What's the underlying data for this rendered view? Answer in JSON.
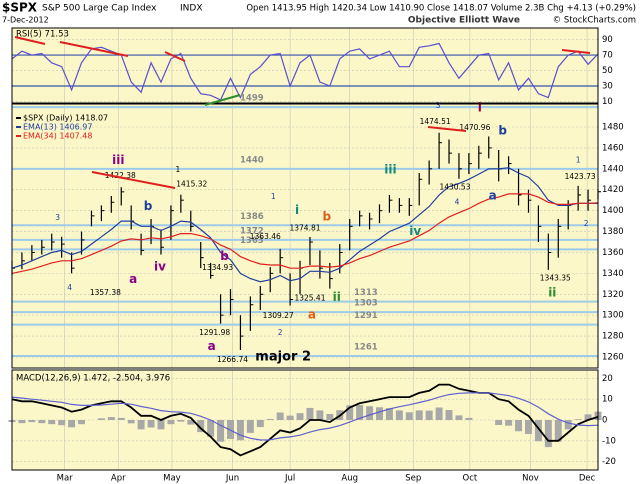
{
  "header": {
    "symbol": "$SPX",
    "name": "S&P 500 Large Cap Index",
    "exchange": "INDX",
    "date": "7-Dec-2012",
    "quote": "Open 1413.95 High 1420.34 Low 1410.90 Close 1418.07 Volume 2.3B Chg +4.13 (+0.29%)",
    "credit": "Objective Elliott Wave",
    "source": "© StockCharts.com"
  },
  "chart_data": [
    {
      "type": "line",
      "background": "#fbf7c8",
      "xlim": [
        0,
        59
      ],
      "ylim": [
        8,
        105
      ],
      "yticks": [
        10,
        30,
        50,
        70,
        90
      ],
      "reference_lines": [
        30,
        70
      ],
      "reference_color": "#3355aa",
      "series": [
        {
          "name": "RSI(5) 71.53",
          "color": "#5a4fcf",
          "values": [
            65,
            75,
            70,
            72,
            60,
            55,
            25,
            60,
            78,
            80,
            75,
            70,
            35,
            22,
            60,
            35,
            65,
            72,
            40,
            20,
            18,
            12,
            40,
            15,
            45,
            55,
            70,
            72,
            30,
            60,
            70,
            35,
            30,
            65,
            75,
            78,
            65,
            70,
            75,
            55,
            55,
            80,
            82,
            85,
            60,
            40,
            55,
            70,
            72,
            38,
            60,
            25,
            40,
            20,
            15,
            55,
            70,
            75,
            58,
            71.53
          ]
        }
      ]
    },
    {
      "type": "ohlc",
      "background": "#fbf7c8",
      "xlim": [
        0,
        59
      ],
      "ylim": [
        1249.5,
        1502
      ],
      "yticks": [
        1260,
        1280,
        1300,
        1320,
        1340,
        1360,
        1380,
        1400,
        1420,
        1440,
        1460,
        1480
      ],
      "levels": [
        1499,
        1440,
        1386,
        1372,
        1363,
        1313,
        1303,
        1291,
        1261
      ],
      "level_color": "#9fcbea",
      "series": [
        {
          "name": "$SPX (Daily) 1418.07",
          "color": "#000000",
          "high": [
            1352,
            1360,
            1367,
            1372,
            1378,
            1375,
            1360,
            1380,
            1400,
            1405,
            1414,
            1422.38,
            1405,
            1378,
            1392,
            1382,
            1405,
            1415.32,
            1400,
            1370,
            1350,
            1320,
            1325,
            1300,
            1318,
            1328,
            1346,
            1363.46,
            1340,
            1352,
            1374.81,
            1362,
            1350,
            1368,
            1392,
            1400,
            1398,
            1406,
            1415,
            1412,
            1412,
            1436,
            1448,
            1474.51,
            1468,
            1455,
            1455,
            1462,
            1470.96,
            1458,
            1452,
            1440,
            1420,
            1405,
            1378,
            1392,
            1410,
            1423.73,
            1420,
            1420.34
          ],
          "low": [
            1338,
            1344,
            1352,
            1358,
            1362,
            1355,
            1340,
            1358,
            1385,
            1390,
            1398,
            1405,
            1382,
            1357.38,
            1368,
            1358,
            1372,
            1398,
            1380,
            1345,
            1334.93,
            1291.98,
            1300,
            1266.74,
            1285,
            1305,
            1322,
            1340,
            1309.27,
            1320,
            1348,
            1335,
            1325.41,
            1340,
            1362,
            1385,
            1382,
            1388,
            1398,
            1398,
            1395,
            1405,
            1425,
            1440,
            1445,
            1430.53,
            1435,
            1440,
            1450,
            1428,
            1435,
            1405,
            1398,
            1370,
            1343.35,
            1355,
            1382,
            1400,
            1400,
            1410.9
          ],
          "close": [
            1345,
            1352,
            1360,
            1365,
            1370,
            1368,
            1345,
            1372,
            1395,
            1400,
            1408,
            1418,
            1390,
            1362,
            1385,
            1365,
            1400,
            1410,
            1385,
            1355,
            1338,
            1300,
            1315,
            1280,
            1310,
            1320,
            1340,
            1355,
            1315,
            1345,
            1370,
            1345,
            1335,
            1360,
            1385,
            1395,
            1392,
            1400,
            1410,
            1405,
            1405,
            1430,
            1440,
            1465,
            1455,
            1440,
            1445,
            1455,
            1460,
            1440,
            1445,
            1415,
            1410,
            1385,
            1360,
            1385,
            1405,
            1415,
            1410,
            1418.07
          ]
        },
        {
          "name": "EMA(13) 1406.97",
          "color": "#1f3f9f",
          "values": [
            1345,
            1348,
            1352,
            1356,
            1360,
            1362,
            1358,
            1361,
            1368,
            1375,
            1382,
            1390,
            1390,
            1385,
            1385,
            1381,
            1385,
            1390,
            1389,
            1382,
            1374,
            1360,
            1353,
            1340,
            1335,
            1332,
            1334,
            1338,
            1333,
            1335,
            1342,
            1342,
            1341,
            1345,
            1353,
            1361,
            1367,
            1373,
            1380,
            1384,
            1388,
            1396,
            1404,
            1415,
            1423,
            1426,
            1430,
            1435,
            1440,
            1440,
            1441,
            1436,
            1432,
            1423,
            1410,
            1405,
            1405,
            1407,
            1407,
            1406.97
          ]
        },
        {
          "name": "EMA(34) 1407.48",
          "color": "#e02020",
          "values": [
            1340,
            1342,
            1344,
            1347,
            1350,
            1352,
            1352,
            1354,
            1358,
            1362,
            1366,
            1371,
            1373,
            1372,
            1374,
            1373,
            1375,
            1378,
            1378,
            1376,
            1373,
            1367,
            1363,
            1356,
            1352,
            1349,
            1348,
            1348,
            1345,
            1345,
            1347,
            1347,
            1346,
            1347,
            1350,
            1354,
            1357,
            1361,
            1365,
            1368,
            1371,
            1376,
            1381,
            1388,
            1394,
            1398,
            1402,
            1407,
            1411,
            1413,
            1416,
            1416,
            1416,
            1413,
            1408,
            1406,
            1406,
            1407,
            1407,
            1407.48
          ]
        }
      ],
      "annotations": [
        {
          "text": "iii",
          "x": 10.7,
          "y": 1448,
          "color": "#8b008b"
        },
        {
          "text": "1",
          "x": 16.7,
          "y": 1439,
          "color": "#000000"
        },
        {
          "text": "1422.38",
          "x": 10.9,
          "y": 1433,
          "color": "#000000"
        },
        {
          "text": "1415.32",
          "x": 18.1,
          "y": 1425,
          "color": "#000000"
        },
        {
          "text": "3",
          "x": 4.6,
          "y": 1393,
          "color": "#1f3f9f"
        },
        {
          "text": "b",
          "x": 13.7,
          "y": 1404,
          "color": "#1f3f9f"
        },
        {
          "text": "4",
          "x": 5.8,
          "y": 1326,
          "color": "#1f3f9f"
        },
        {
          "text": "1357.38",
          "x": 9.4,
          "y": 1321,
          "color": "#000000"
        },
        {
          "text": "a",
          "x": 12.2,
          "y": 1334,
          "color": "#8b008b"
        },
        {
          "text": "iv",
          "x": 14.9,
          "y": 1346,
          "color": "#8b008b"
        },
        {
          "text": "b",
          "x": 21.4,
          "y": 1356,
          "color": "#8b008b"
        },
        {
          "text": "1334.93",
          "x": 20.7,
          "y": 1345,
          "color": "#000000"
        },
        {
          "text": "1291.98",
          "x": 20.4,
          "y": 1283,
          "color": "#000000"
        },
        {
          "text": "a",
          "x": 20.1,
          "y": 1270,
          "color": "#8b008b"
        },
        {
          "text": "1266.74",
          "x": 22.2,
          "y": 1257,
          "color": "#000000"
        },
        {
          "text": "major 2",
          "x": 27.3,
          "y": 1260,
          "color": "#000000"
        },
        {
          "text": "2",
          "x": 27.0,
          "y": 1283,
          "color": "#1f3f9f"
        },
        {
          "text": "1309.27",
          "x": 26.8,
          "y": 1299,
          "color": "#000000"
        },
        {
          "text": "1",
          "x": 26.3,
          "y": 1413,
          "color": "#1f3f9f"
        },
        {
          "text": "1363.46",
          "x": 25.5,
          "y": 1375,
          "color": "#000000"
        },
        {
          "text": "i",
          "x": 28.7,
          "y": 1400,
          "color": "#138a7a"
        },
        {
          "text": "1374.81",
          "x": 29.5,
          "y": 1383,
          "color": "#000000"
        },
        {
          "text": "b",
          "x": 31.7,
          "y": 1394,
          "color": "#e0601a"
        },
        {
          "text": "1325.41",
          "x": 30.0,
          "y": 1316,
          "color": "#000000"
        },
        {
          "text": "a",
          "x": 30.2,
          "y": 1300,
          "color": "#e0601a"
        },
        {
          "text": "ii",
          "x": 32.7,
          "y": 1317,
          "color": "#2e8b2e"
        },
        {
          "text": "iii",
          "x": 38.1,
          "y": 1439,
          "color": "#138a7a"
        },
        {
          "text": "iv",
          "x": 40.6,
          "y": 1380,
          "color": "#138a7a"
        },
        {
          "text": "3",
          "x": 42.9,
          "y": 1500,
          "color": "#1f3f9f"
        },
        {
          "text": "i",
          "x": 47.1,
          "y": 1498,
          "color": "#99003d"
        },
        {
          "text": "1474.51",
          "x": 42.6,
          "y": 1485,
          "color": "#000000"
        },
        {
          "text": "1470.96",
          "x": 46.6,
          "y": 1479,
          "color": "#000000"
        },
        {
          "text": "b",
          "x": 49.4,
          "y": 1476,
          "color": "#1f3f9f"
        },
        {
          "text": "1430.53",
          "x": 44.6,
          "y": 1422,
          "color": "#000000"
        },
        {
          "text": "4",
          "x": 44.8,
          "y": 1408,
          "color": "#1f3f9f"
        },
        {
          "text": "a",
          "x": 48.4,
          "y": 1414,
          "color": "#1f3f9f"
        },
        {
          "text": "1343.35",
          "x": 54.7,
          "y": 1335,
          "color": "#000000"
        },
        {
          "text": "ii",
          "x": 54.4,
          "y": 1321,
          "color": "#2e8b2e"
        },
        {
          "text": "1",
          "x": 57.0,
          "y": 1448,
          "color": "#1f3f9f"
        },
        {
          "text": "1423.73",
          "x": 57.2,
          "y": 1432,
          "color": "#000000"
        },
        {
          "text": "2",
          "x": 57.8,
          "y": 1387,
          "color": "#1f3f9f"
        }
      ]
    },
    {
      "type": "macd",
      "background": "#fbf7c8",
      "xlim": [
        0,
        59
      ],
      "ylim": [
        -24,
        24
      ],
      "yticks": [
        -20,
        -10,
        0,
        10,
        20
      ],
      "label": "MACD(12,26,9) 1.472, -2.504, 3.976",
      "xticks": [
        {
          "value": 5.3,
          "label": "Mar"
        },
        {
          "value": 10.7,
          "label": "Apr"
        },
        {
          "value": 16.1,
          "label": "May"
        },
        {
          "value": 22.2,
          "label": "Jun"
        },
        {
          "value": 28.0,
          "label": "Jul"
        },
        {
          "value": 34.0,
          "label": "Aug"
        },
        {
          "value": 40.4,
          "label": "Sep"
        },
        {
          "value": 46.1,
          "label": "Oct"
        },
        {
          "value": 52.2,
          "label": "Nov"
        },
        {
          "value": 57.9,
          "label": "Dec"
        }
      ],
      "series": [
        {
          "style": "histogram",
          "color": "#a8a8a8",
          "values": [
            -1,
            -1.5,
            -1,
            -1.5,
            -2,
            -2.5,
            -3.5,
            -2,
            0,
            0.8,
            1.4,
            1,
            -1.6,
            -4.5,
            -3.6,
            -4.5,
            -2,
            -0.8,
            -2.2,
            -5.8,
            -8,
            -10.4,
            -9.1,
            -9.7,
            -6.2,
            -3.4,
            0.5,
            3.6,
            2.1,
            3.3,
            5.8,
            4.6,
            2.9,
            4.7,
            7,
            7.2,
            6.6,
            6.1,
            5.7,
            4.6,
            3.7,
            4.6,
            4.5,
            6,
            4.8,
            2.2,
            1,
            0,
            0,
            -2.4,
            -2.7,
            -5.4,
            -6.7,
            -10.2,
            -13,
            -10.4,
            -4.5,
            0.4,
            2.7,
            3.976
          ]
        },
        {
          "style": "line",
          "color": "#000000",
          "values": [
            10,
            9,
            9,
            8,
            7,
            6,
            4,
            5,
            7,
            8,
            9,
            9,
            6,
            2,
            2,
            0,
            2,
            3,
            1,
            -4,
            -8,
            -13,
            -14,
            -17,
            -15,
            -13,
            -9,
            -5,
            -6,
            -4,
            0,
            0,
            -1,
            2,
            6,
            8,
            9,
            10,
            11,
            11,
            11,
            13,
            14,
            17,
            17,
            15,
            14,
            13,
            13,
            10,
            9,
            5,
            2,
            -4,
            -10,
            -10,
            -6,
            -2,
            0,
            1.472
          ]
        },
        {
          "style": "line",
          "color": "#6060d0",
          "values": [
            11,
            10.5,
            10,
            9.5,
            9,
            8.5,
            7.5,
            7,
            7,
            7.2,
            7.6,
            8,
            7.6,
            6.5,
            5.6,
            4.5,
            4,
            3.8,
            3.2,
            1.8,
            0,
            -2.6,
            -4.9,
            -7.3,
            -8.8,
            -9.6,
            -9.5,
            -8.6,
            -8.1,
            -7.3,
            -5.8,
            -4.6,
            -3.9,
            -2.7,
            -1,
            0.8,
            2.4,
            3.9,
            5.3,
            6.4,
            7.3,
            8.4,
            9.5,
            11,
            12.2,
            12.8,
            13,
            13,
            13,
            12.4,
            11.7,
            10.4,
            8.7,
            6.2,
            3,
            0.4,
            -1.5,
            -2.4,
            -2.7,
            -2.504
          ]
        }
      ]
    }
  ]
}
